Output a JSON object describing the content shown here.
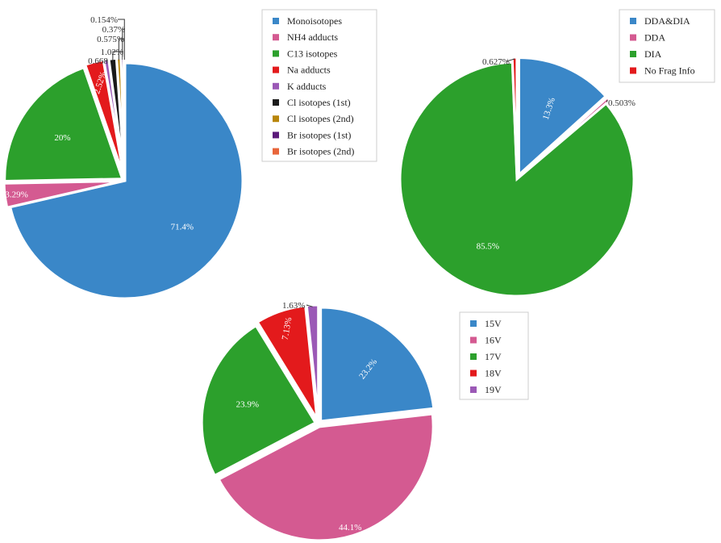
{
  "chart_data": [
    {
      "type": "pie",
      "id": "adducts",
      "categories": [
        "Monoisotopes",
        "NH4 adducts",
        "C13 isotopes",
        "Na adducts",
        "K adducts",
        "Cl isotopes (1st)",
        "Cl isotopes (2nd)",
        "Br isotopes (1st)",
        "Br isotopes (2nd)"
      ],
      "values": [
        71.4,
        3.29,
        20,
        2.52,
        0.668,
        1.02,
        0.575,
        0.37,
        0.154
      ],
      "labels": [
        "71.4%",
        "3.29%",
        "20%",
        "2.52%",
        "0.668%",
        "1.02%",
        "0.575%",
        "0.37%",
        "0.154%"
      ],
      "colors": [
        "#3a87c8",
        "#d45a91",
        "#2ca02c",
        "#e31a1c",
        "#9b59b6",
        "#1a1a1a",
        "#b8860b",
        "#5b1a7a",
        "#e8653a"
      ],
      "legend": "right"
    },
    {
      "type": "pie",
      "id": "acquisition",
      "categories": [
        "DDA&DIA",
        "DDA",
        "DIA",
        "No Frag Info"
      ],
      "values": [
        13.3,
        0.503,
        85.5,
        0.627
      ],
      "labels": [
        "13.3%",
        "0.503%",
        "85.5%",
        "0.627%"
      ],
      "colors": [
        "#3a87c8",
        "#d45a91",
        "#2ca02c",
        "#e31a1c"
      ],
      "legend": "top-right"
    },
    {
      "type": "pie",
      "id": "voltage",
      "categories": [
        "15V",
        "16V",
        "17V",
        "18V",
        "19V"
      ],
      "values": [
        23.2,
        44.1,
        23.9,
        7.13,
        1.63
      ],
      "labels": [
        "23.2%",
        "44.1%",
        "23.9%",
        "7.13%",
        "1.63%"
      ],
      "colors": [
        "#3a87c8",
        "#d45a91",
        "#2ca02c",
        "#e31a1c",
        "#9b59b6"
      ],
      "legend": "right"
    }
  ]
}
